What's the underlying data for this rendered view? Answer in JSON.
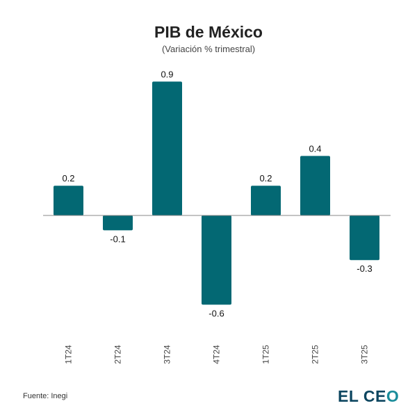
{
  "chart_data": {
    "type": "bar",
    "title": "PIB de México",
    "subtitle": "(Variación % trimestral)",
    "categories": [
      "1T24",
      "2T24",
      "3T24",
      "4T24",
      "1T25",
      "2T25",
      "3T25"
    ],
    "values": [
      0.2,
      -0.1,
      0.9,
      -0.6,
      0.2,
      0.4,
      -0.3
    ],
    "data_labels": [
      "0.2",
      "-0.1",
      "0.9",
      "-0.6",
      "0.2",
      "0.4",
      "-0.3"
    ],
    "bar_color": "#036873",
    "grid": false
  },
  "footer": {
    "source": "Fuente: Inegi",
    "logo": "EL CEO"
  }
}
